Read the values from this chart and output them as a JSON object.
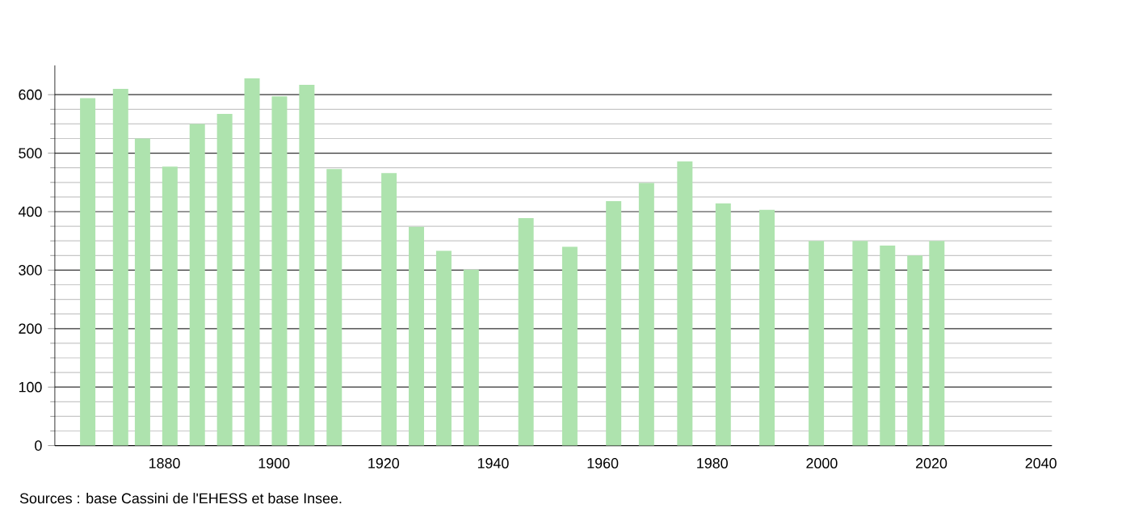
{
  "chart_data": {
    "type": "bar",
    "x": [
      1866,
      1872,
      1876,
      1881,
      1886,
      1891,
      1896,
      1901,
      1906,
      1911,
      1921,
      1926,
      1931,
      1936,
      1946,
      1954,
      1962,
      1968,
      1975,
      1982,
      1990,
      1999,
      2007,
      2012,
      2017,
      2021
    ],
    "values": [
      594,
      610,
      525,
      477,
      550,
      567,
      628,
      597,
      617,
      473,
      466,
      374,
      333,
      301,
      389,
      340,
      418,
      449,
      486,
      414,
      403,
      350,
      350,
      342,
      325,
      350
    ],
    "color": "#aee3ae",
    "xlim": [
      1860,
      2042
    ],
    "xticks": [
      1880,
      1900,
      1920,
      1940,
      1960,
      1980,
      2000,
      2020,
      2040
    ],
    "ylim": [
      0,
      650
    ],
    "yticks": [
      0,
      100,
      200,
      300,
      400,
      500,
      600
    ],
    "grid": "y",
    "annotations": [
      "Sources : base Cassini de l'EHESS et base Insee."
    ]
  }
}
